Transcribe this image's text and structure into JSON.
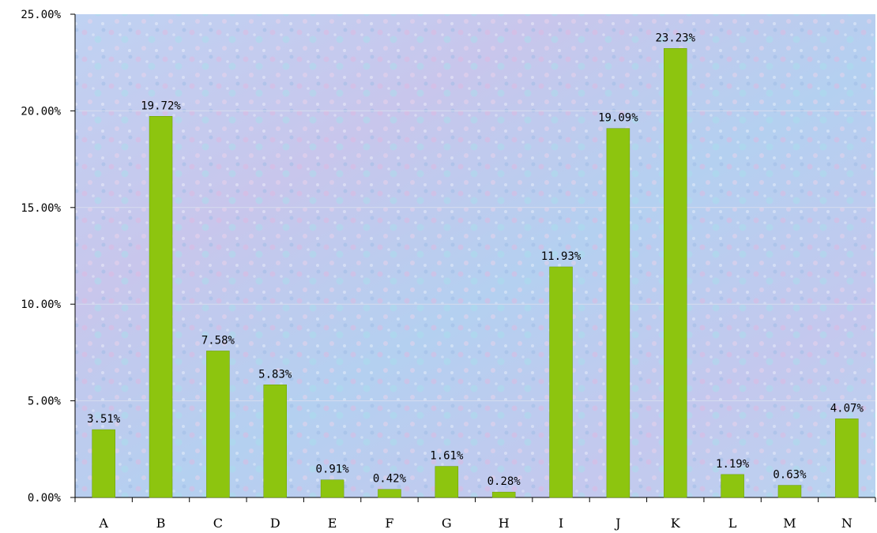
{
  "chart_data": {
    "type": "bar",
    "categories": [
      "A",
      "B",
      "C",
      "D",
      "E",
      "F",
      "G",
      "H",
      "I",
      "J",
      "K",
      "L",
      "M",
      "N"
    ],
    "values": [
      3.51,
      19.72,
      7.58,
      5.83,
      0.91,
      0.42,
      1.61,
      0.28,
      11.93,
      19.09,
      23.23,
      1.19,
      0.63,
      4.07
    ],
    "data_labels": [
      "3.51%",
      "19.72%",
      "7.58%",
      "5.83%",
      "0.91%",
      "0.42%",
      "1.61%",
      "0.28%",
      "11.93%",
      "19.09%",
      "23.23%",
      "1.19%",
      "0.63%",
      "4.07%"
    ],
    "y_ticks": [
      0,
      5,
      10,
      15,
      20,
      25
    ],
    "y_tick_labels": [
      "0.00%",
      "5.00%",
      "10.00%",
      "15.00%",
      "20.00%",
      "25.00%"
    ],
    "ylim": [
      0,
      25
    ],
    "title": "",
    "xlabel": "",
    "ylabel": "",
    "grid": true,
    "bar_color": "#8DC50F",
    "bar_edge_color": "#6A9A00",
    "plot_background": "#B7CCEE"
  }
}
